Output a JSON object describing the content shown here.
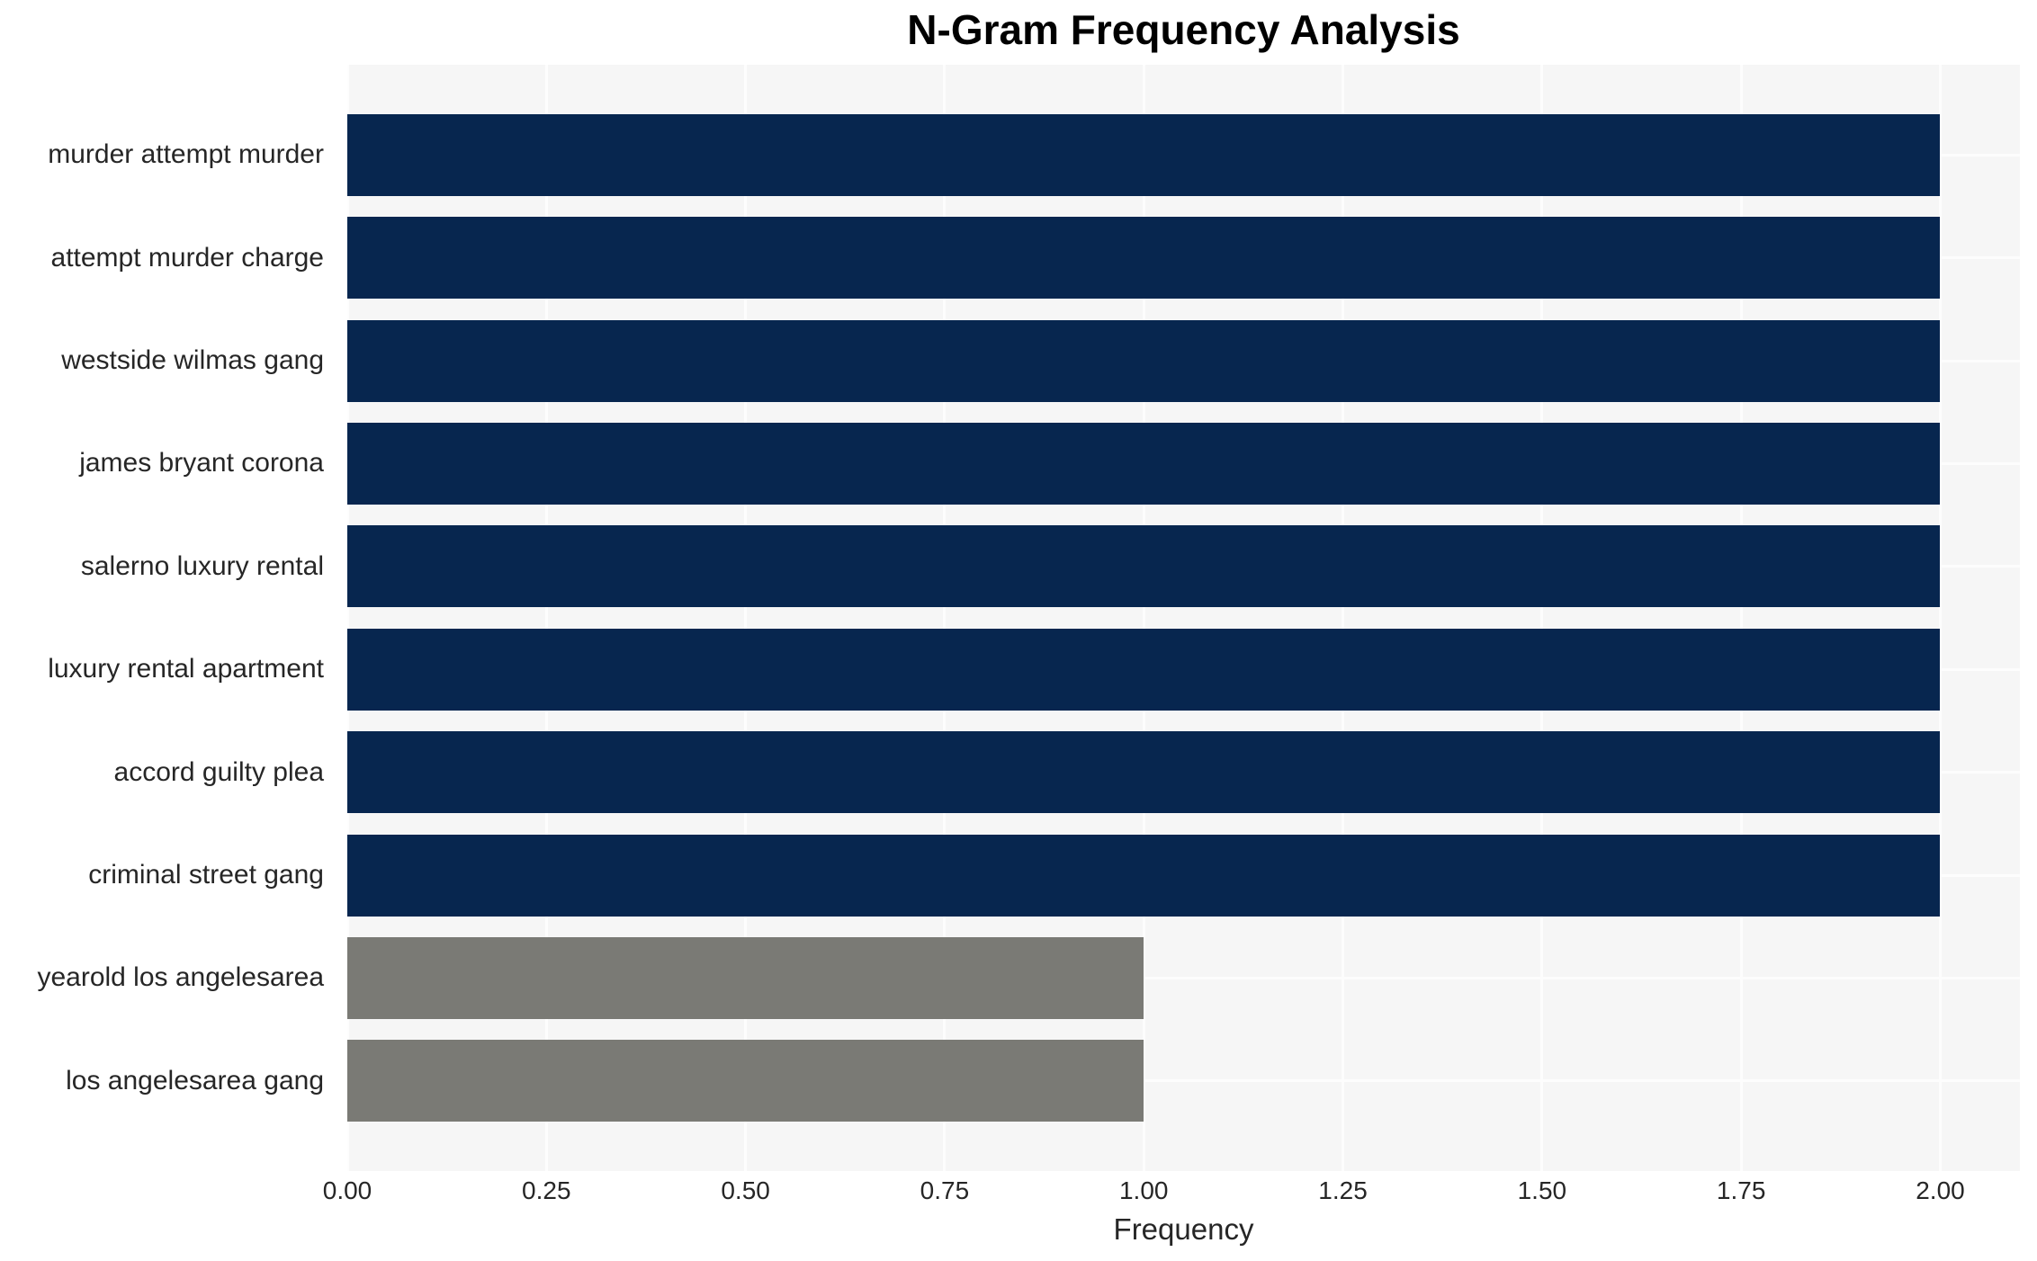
{
  "chart_data": {
    "type": "bar",
    "orientation": "horizontal",
    "title": "N-Gram Frequency Analysis",
    "xlabel": "Frequency",
    "ylabel": "",
    "categories": [
      "murder attempt murder",
      "attempt murder charge",
      "westside wilmas gang",
      "james bryant corona",
      "salerno luxury rental",
      "luxury rental apartment",
      "accord guilty plea",
      "criminal street gang",
      "yearold los angelesarea",
      "los angelesarea gang"
    ],
    "values": [
      2,
      2,
      2,
      2,
      2,
      2,
      2,
      2,
      1,
      1
    ],
    "bar_colors": [
      "#07264f",
      "#07264f",
      "#07264f",
      "#07264f",
      "#07264f",
      "#07264f",
      "#07264f",
      "#07264f",
      "#7a7a75",
      "#7a7a75"
    ],
    "x_ticks": [
      "0.00",
      "0.25",
      "0.50",
      "0.75",
      "1.00",
      "1.25",
      "1.50",
      "1.75",
      "2.00"
    ],
    "xlim": [
      0,
      2.1
    ],
    "grid": true,
    "legend_position": "none",
    "plot_background": "#f6f6f6",
    "grid_color": "#fdfdfd",
    "text_color": "#262626",
    "title_color": "#000000"
  }
}
